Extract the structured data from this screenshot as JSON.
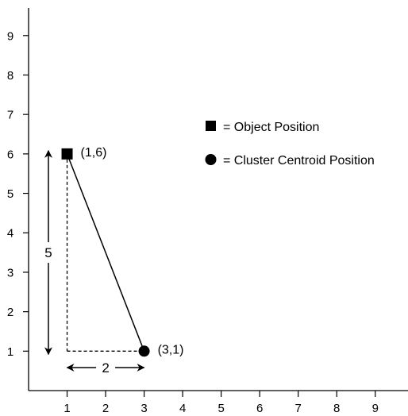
{
  "chart_data": {
    "type": "scatter",
    "xlim": [
      0,
      9.85
    ],
    "ylim": [
      0,
      9.7
    ],
    "x_ticks": [
      "1",
      "2",
      "3",
      "4",
      "5",
      "6",
      "7",
      "8",
      "9"
    ],
    "y_ticks": [
      "1",
      "2",
      "3",
      "4",
      "5",
      "6",
      "7",
      "8",
      "9"
    ],
    "grid": false,
    "legend_position": "right",
    "points": [
      {
        "x": 1,
        "y": 6,
        "marker": "square",
        "label": "(1,6)"
      },
      {
        "x": 3,
        "y": 1,
        "marker": "circle",
        "label": "(3,1)"
      }
    ],
    "connector": {
      "from": [
        1,
        6
      ],
      "to": [
        3,
        1
      ],
      "style": "solid"
    },
    "guides": [
      {
        "from": [
          1,
          6
        ],
        "to": [
          1,
          1
        ],
        "style": "dashed"
      },
      {
        "from": [
          1,
          1
        ],
        "to": [
          3,
          1
        ],
        "style": "dashed"
      }
    ],
    "distances": [
      {
        "label": "5",
        "orientation": "vertical",
        "from": 1,
        "to": 6
      },
      {
        "label": "2",
        "orientation": "horizontal",
        "from": 1,
        "to": 3
      }
    ],
    "legend": [
      {
        "marker": "square",
        "text": "= Object Position"
      },
      {
        "marker": "circle",
        "text": "= Cluster Centroid Position"
      }
    ],
    "colors": {
      "ink": "#000000",
      "background": "#ffffff"
    }
  }
}
